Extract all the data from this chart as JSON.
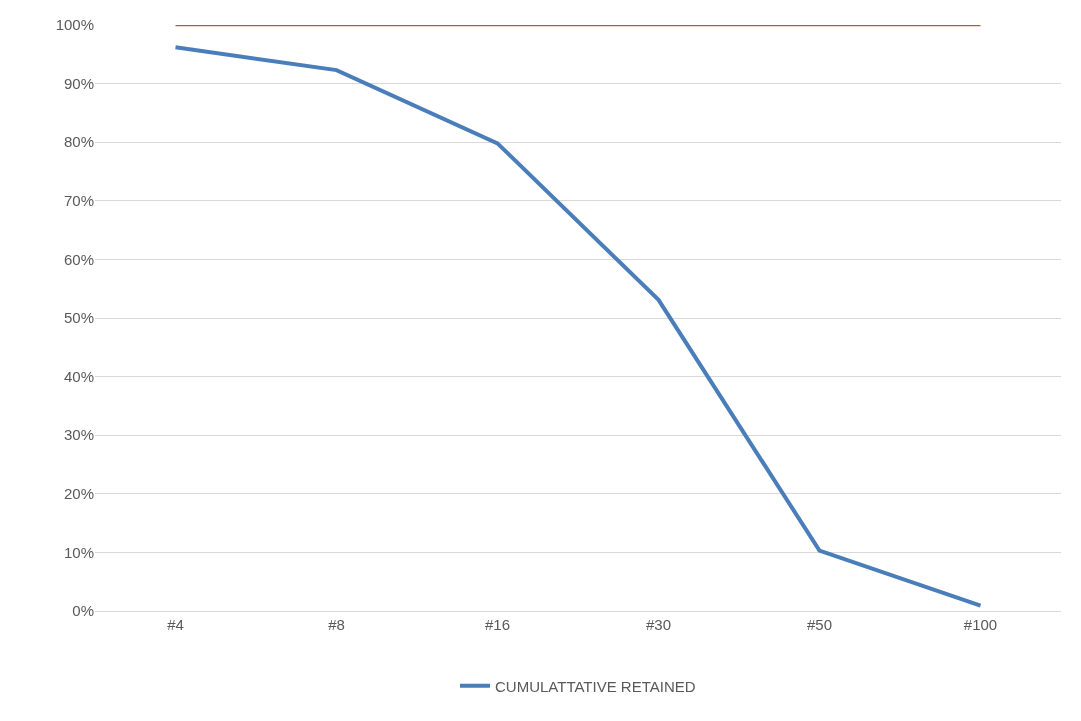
{
  "chart_data": {
    "type": "line",
    "categories": [
      "#4",
      "#8",
      "#16",
      "#30",
      "#50",
      "#100"
    ],
    "series": [
      {
        "name": "CUMULATTATIVE RETAINED",
        "color": "#4a7ebb",
        "values": [
          96.2,
          92.3,
          79.8,
          53.1,
          10.3,
          0.9
        ]
      },
      {
        "color": "#c0504d",
        "values": [
          100,
          100,
          100,
          100,
          100,
          100
        ]
      }
    ],
    "ylim": [
      0,
      100
    ],
    "yticks": [
      {
        "value": 0,
        "label": "0%"
      },
      {
        "value": 10,
        "label": "10%"
      },
      {
        "value": 20,
        "label": "20%"
      },
      {
        "value": 30,
        "label": "30%"
      },
      {
        "value": 40,
        "label": "40%"
      },
      {
        "value": 50,
        "label": "50%"
      },
      {
        "value": 60,
        "label": "60%"
      },
      {
        "value": 70,
        "label": "70%"
      },
      {
        "value": 80,
        "label": "80%"
      },
      {
        "value": 90,
        "label": "90%"
      },
      {
        "value": 100,
        "label": "100%"
      }
    ],
    "grid": "y",
    "legend": "bottom",
    "marker": "none",
    "line_style": "solid"
  }
}
